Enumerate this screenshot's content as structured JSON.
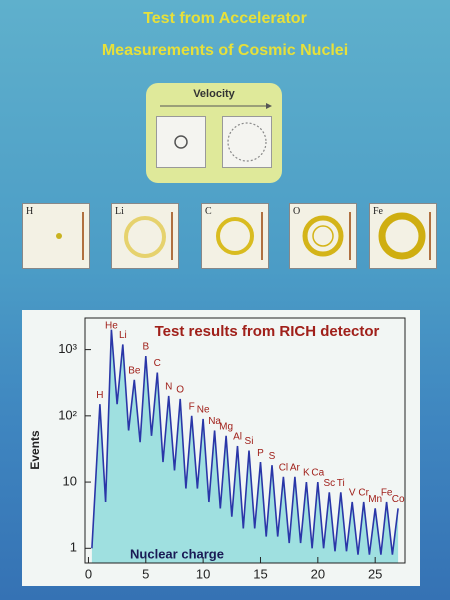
{
  "header": {
    "title": "Test from Accelerator",
    "subtitle": "Measurements of Cosmic  Nuclei"
  },
  "velocity_panel": {
    "label": "Velocity"
  },
  "rings": [
    {
      "label": "H"
    },
    {
      "label": "Li"
    },
    {
      "label": "C"
    },
    {
      "label": "O"
    },
    {
      "label": "Fe"
    }
  ],
  "chart_data": {
    "type": "line",
    "title": "Test results from RICH detector",
    "x_label": "Nuclear charge",
    "y_label": "Events",
    "log_scale_y": true,
    "color": "#2a36a8",
    "fill_color": "#9fe0e0",
    "x": [
      0.3,
      1,
      1.5,
      2,
      2.5,
      3,
      3.5,
      4,
      4.5,
      5,
      5.5,
      6,
      6.5,
      7,
      7.5,
      8,
      8.5,
      9,
      9.5,
      10,
      10.5,
      11,
      11.5,
      12,
      12.5,
      13,
      13.5,
      14,
      14.5,
      15,
      15.5,
      16,
      16.5,
      17,
      17.5,
      18,
      18.5,
      19,
      19.5,
      20,
      20.5,
      21,
      21.5,
      22,
      22.5,
      23,
      23.5,
      24,
      24.5,
      25,
      25.5,
      26,
      26.5,
      27
    ],
    "values": [
      1,
      150,
      5,
      2000,
      150,
      1200,
      60,
      350,
      40,
      800,
      50,
      450,
      20,
      200,
      15,
      180,
      8,
      100,
      8,
      90,
      5,
      60,
      4,
      50,
      3,
      35,
      2,
      30,
      2,
      20,
      1.5,
      18,
      1.5,
      12,
      1.2,
      12,
      1.2,
      10,
      1,
      10,
      1,
      7,
      0.9,
      7,
      0.9,
      5,
      0.8,
      5,
      0.8,
      4,
      0.8,
      5,
      0.8,
      4
    ],
    "peak_labels": {
      "text": [
        "H",
        "He",
        "Li",
        "Be",
        "B",
        "C",
        "N",
        "O",
        "F",
        "Ne",
        "Na",
        "Mg",
        "Al",
        "Si",
        "P",
        "S",
        "Cl",
        "Ar",
        "K",
        "Ca",
        "Sc",
        "Ti",
        "V",
        "Cr",
        "Mn",
        "Fe",
        "Co"
      ],
      "x": [
        1,
        2,
        3,
        4,
        5,
        6,
        7,
        8,
        9,
        10,
        11,
        12,
        13,
        14,
        15,
        16,
        17,
        18,
        19,
        20,
        21,
        22,
        23,
        24,
        25,
        26,
        27
      ]
    },
    "xlim": [
      -0.3,
      27.6
    ],
    "xticks": [
      0,
      5,
      10,
      15,
      20,
      25
    ],
    "ylim": [
      0.6,
      3000
    ],
    "yticks": [
      1,
      10,
      {
        "value": 100,
        "label": "10²"
      },
      {
        "value": 1000,
        "label": "10³"
      }
    ]
  }
}
